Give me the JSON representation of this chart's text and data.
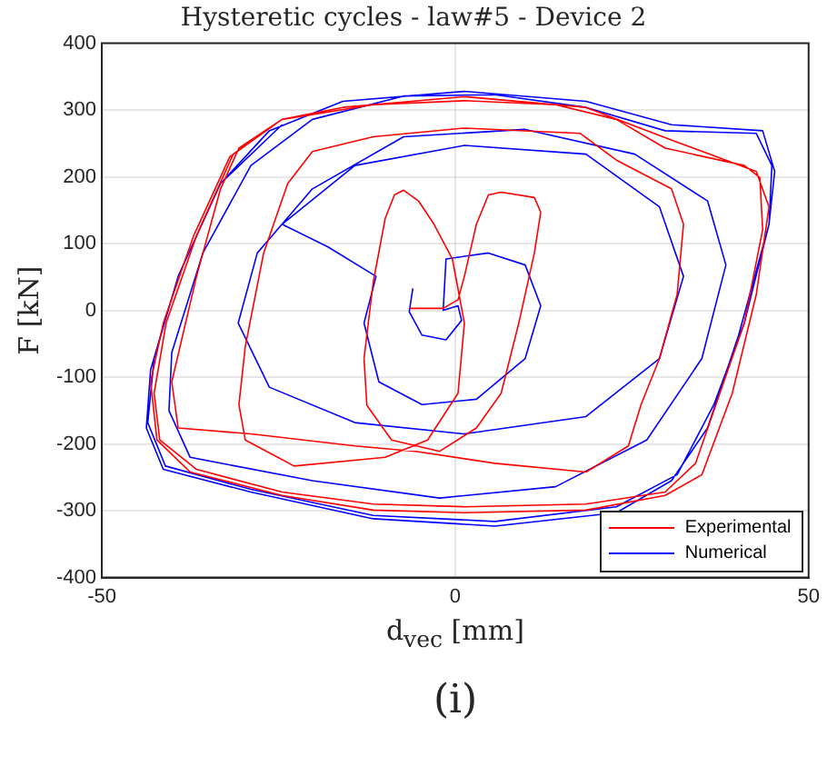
{
  "chart_data": {
    "type": "line",
    "title": "Hysteretic cycles - law#5 - Device 2",
    "xlabel": "d$_{vec}$ [mm]",
    "ylabel": "F [kN]",
    "annotations": [
      "(i)"
    ],
    "xlim": [
      -50,
      50
    ],
    "xticks": [
      -50,
      0,
      50
    ],
    "ylim": [
      -400,
      400
    ],
    "yticks": [
      -400,
      -300,
      -200,
      -100,
      0,
      100,
      200,
      300,
      400
    ],
    "grid": true,
    "legend": "bottom right",
    "marker": "none",
    "line_style": "solid",
    "series": [
      {
        "name": "Experimental",
        "color": "#ff0000",
        "x": [
          -6.5,
          -1.7,
          0.4,
          1.3,
          3.0,
          4.7,
          6.5,
          11.2,
          12.1,
          11.2,
          9.0,
          6.5,
          3.0,
          -2.2,
          -9.0,
          -12.5,
          -12.9,
          -11.6,
          -9.9,
          -8.6,
          -7.3,
          -5.2,
          -3.0,
          -0.4,
          1.3,
          0.4,
          -3.9,
          -9.9,
          -22.8,
          -29.7,
          -30.6,
          -29.7,
          -27.1,
          -23.7,
          -20.2,
          -11.6,
          1.3,
          17.7,
          22.8,
          30.6,
          32.3,
          31.4,
          28.9,
          26.3,
          24.5,
          18.5,
          5.6,
          -5.6,
          -14.2,
          -28.9,
          -39.2,
          -40.1,
          -36.6,
          -33.2,
          -30.6,
          -24.5,
          -11.6,
          1.3,
          14.2,
          22.8,
          29.7,
          40.9,
          43.1,
          43.5,
          40.9,
          36.6,
          34.0,
          29.7,
          18.5,
          1.3,
          -11.6,
          -24.5,
          -36.6,
          -41.8,
          -42.6,
          -40.9,
          -36.6,
          -31.4,
          -24.5,
          -15.9,
          1.3,
          18.5,
          31.4,
          42.6,
          44.4,
          42.6,
          39.2,
          34.9,
          29.7,
          18.5,
          1.3,
          -11.6,
          -24.5,
          -37.5,
          -42.2,
          -43.1,
          -41.3,
          -37.0,
          -31.9,
          -24.5
        ],
        "values": [
          3,
          3,
          16,
          51,
          129,
          173,
          177,
          169,
          147,
          86,
          -19,
          -124,
          -176,
          -211,
          -194,
          -142,
          -72,
          42,
          138,
          173,
          180,
          164,
          129,
          77,
          -19,
          -124,
          -194,
          -220,
          -233,
          -194,
          -141,
          -54,
          86,
          190,
          238,
          260,
          273,
          265,
          225,
          182,
          129,
          24,
          -72,
          -141,
          -203,
          -242,
          -229,
          -211,
          -203,
          -185,
          -176,
          -107,
          51,
          182,
          243,
          286,
          308,
          314,
          308,
          286,
          243,
          217,
          199,
          121,
          -19,
          -150,
          -229,
          -272,
          -290,
          -294,
          -290,
          -272,
          -238,
          -194,
          -124,
          -19,
          112,
          234,
          286,
          304,
          320,
          304,
          252,
          208,
          155,
          24,
          -124,
          -246,
          -277,
          -299,
          -303,
          -299,
          -277,
          -242,
          -194,
          -107,
          -19,
          112,
          230,
          286
        ]
      },
      {
        "name": "Numerical",
        "color": "#0000ff",
        "x": [
          -6.0,
          -6.5,
          -4.7,
          -1.3,
          0.9,
          0.4,
          -1.7,
          -1.3,
          4.7,
          9.9,
          12.1,
          9.9,
          3.0,
          -4.7,
          -10.8,
          -12.9,
          -11.2,
          -18.0,
          -24.5,
          -14.2,
          1.3,
          18.5,
          28.9,
          32.3,
          28.9,
          18.5,
          1.3,
          -14.2,
          -26.3,
          -30.7,
          -28.0,
          -20.2,
          -7.3,
          9.9,
          25.4,
          35.7,
          38.3,
          34.9,
          27.1,
          14.2,
          -2.2,
          -20.2,
          -37.5,
          -40.5,
          -40.1,
          -35.7,
          -28.9,
          -20.2,
          -7.3,
          5.6,
          18.5,
          29.7,
          42.6,
          44.8,
          44.4,
          40.9,
          36.6,
          31.4,
          22.8,
          5.6,
          -11.6,
          -28.9,
          -41.0,
          -43.5,
          -42.6,
          -39.2,
          -33.2,
          -26.3,
          -15.9,
          1.3,
          18.5,
          30.6,
          43.5,
          45.2,
          44.4,
          40.1,
          35.7,
          30.6,
          22.8,
          5.6,
          -11.6,
          -28.9,
          -41.3,
          -43.7,
          -43.1,
          -39.2,
          -33.2,
          -24.5
        ],
        "values": [
          33,
          -2,
          -37,
          -44,
          -15,
          7,
          0,
          77,
          86,
          68,
          7,
          -72,
          -133,
          -141,
          -107,
          -19,
          51,
          95,
          129,
          217,
          247,
          234,
          155,
          51,
          -72,
          -159,
          -185,
          -168,
          -115,
          -19,
          86,
          182,
          260,
          271,
          234,
          164,
          68,
          -72,
          -194,
          -264,
          -281,
          -255,
          -220,
          -150,
          -63,
          86,
          217,
          286,
          321,
          323,
          304,
          269,
          265,
          217,
          129,
          -19,
          -141,
          -246,
          -294,
          -316,
          -307,
          -268,
          -233,
          -168,
          -72,
          51,
          190,
          269,
          313,
          328,
          313,
          278,
          269,
          208,
          129,
          -37,
          -176,
          -255,
          -303,
          -323,
          -312,
          -272,
          -238,
          -176,
          -89,
          51,
          190,
          278
        ]
      }
    ]
  }
}
